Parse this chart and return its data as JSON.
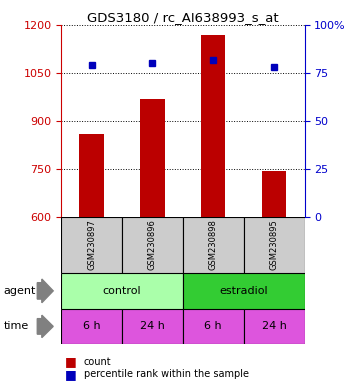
{
  "title": "GDS3180 / rc_AI638993_s_at",
  "samples": [
    "GSM230897",
    "GSM230896",
    "GSM230898",
    "GSM230895"
  ],
  "counts": [
    860,
    970,
    1170,
    745
  ],
  "percentile_rank_pct": [
    79,
    80,
    82,
    78
  ],
  "ylim_left": [
    600,
    1200
  ],
  "ylim_right": [
    0,
    100
  ],
  "yticks_left": [
    600,
    750,
    900,
    1050,
    1200
  ],
  "yticks_right": [
    0,
    25,
    50,
    75,
    100
  ],
  "bar_color": "#bb0000",
  "dot_color": "#0000bb",
  "agent_control_color": "#aaffaa",
  "agent_estradiol_color": "#33cc33",
  "time_color": "#dd55dd",
  "sample_bg": "#cccccc",
  "left_tick_color": "#cc0000",
  "right_tick_color": "#0000cc",
  "bar_width": 0.4
}
